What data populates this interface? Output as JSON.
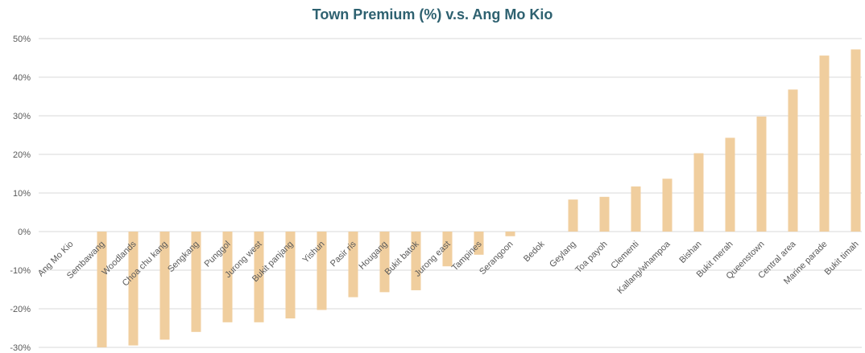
{
  "colors": {
    "bar": "#F0CE9E",
    "title": "#2E6170",
    "grid": "#D9D9D9",
    "tick_text": "#595959"
  },
  "chart_data": {
    "type": "bar",
    "title": "Town Premium (%) v.s. Ang Mo Kio",
    "xlabel": "",
    "ylabel": "",
    "ylim": [
      -30,
      50
    ],
    "y_ticks": [
      -30,
      -20,
      -10,
      0,
      10,
      20,
      30,
      40,
      50
    ],
    "y_tick_labels": [
      "-30%",
      "-20%",
      "-10%",
      "0%",
      "10%",
      "20%",
      "30%",
      "40%",
      "50%"
    ],
    "grid": true,
    "legend": "none",
    "categories": [
      "Ang Mo Kio",
      "Sembawang",
      "Woodlands",
      "Choa chu kang",
      "Sengkang",
      "Punggol",
      "Jurong west",
      "Bukit panjang",
      "Yishun",
      "Pasir ris",
      "Hougang",
      "Bukit batok",
      "Jurong east",
      "Tampines",
      "Serangoon",
      "Bedok",
      "Geylang",
      "Toa payoh",
      "Clementi",
      "Kallang/whampoa",
      "Bishan",
      "Bukit merah",
      "Queenstown",
      "Central area",
      "Marine parade",
      "Bukit timah"
    ],
    "values": [
      0,
      -30,
      -29.5,
      -28,
      -26,
      -23.5,
      -23.5,
      -22.5,
      -20.3,
      -17,
      -15.7,
      -15.2,
      -9,
      -6,
      -1.2,
      0,
      8.3,
      9,
      11.7,
      13.7,
      20.3,
      24.3,
      29.8,
      36.8,
      45.6,
      47.2
    ]
  }
}
